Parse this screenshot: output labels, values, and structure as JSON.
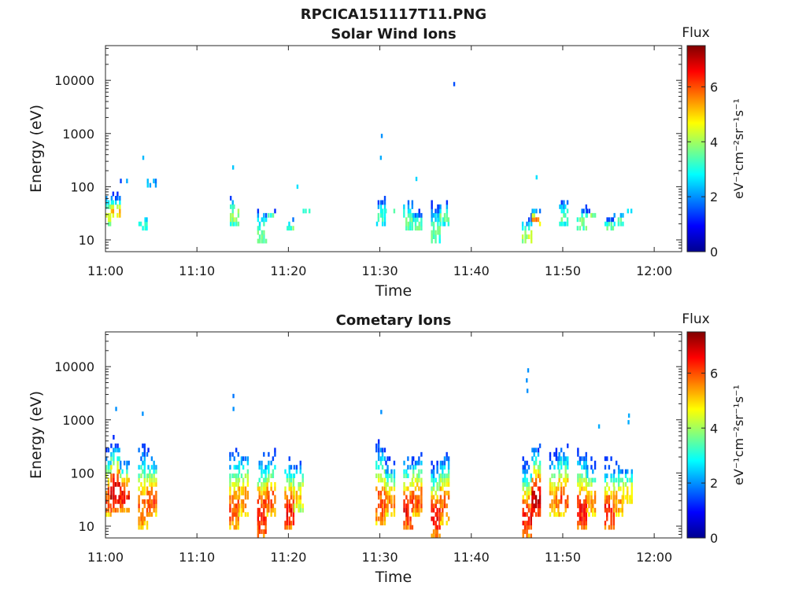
{
  "figure": {
    "title": "RPCICA151117T11.PNG"
  },
  "colorscale": {
    "stops": [
      "#00008f",
      "#0000ff",
      "#0080ff",
      "#00ffff",
      "#80ff80",
      "#ffff00",
      "#ff8000",
      "#ff0000",
      "#800000"
    ],
    "min": 0,
    "max": 7.5
  },
  "chart_data": [
    {
      "type": "heatmap",
      "title": "Solar Wind Ions",
      "xlabel": "Time",
      "ylabel": "Energy (eV)",
      "yscale": "log",
      "xlim": [
        "11:00",
        "12:03"
      ],
      "ylim": [
        6,
        45000
      ],
      "x_ticks": [
        "11:00",
        "11:10",
        "11:20",
        "11:30",
        "11:40",
        "11:50",
        "12:00"
      ],
      "y_ticks": [
        "10",
        "100",
        "1000",
        "10000"
      ],
      "colorbar": {
        "title": "Flux",
        "label": "eV⁻¹cm⁻²sr⁻¹s⁻¹",
        "ticks": [
          "0",
          "2",
          "4",
          "6"
        ]
      },
      "bursts": [
        {
          "t": "11:00",
          "e_lo": 20,
          "e_hi": 100,
          "peak": 4.6
        },
        {
          "t": "11:01",
          "e_lo": 25,
          "e_hi": 90,
          "peak": 5.0
        },
        {
          "t": "11:02",
          "e_lo": 110,
          "e_hi": 150,
          "peak": 2.5
        },
        {
          "t": "11:04",
          "e_lo": 15,
          "e_hi": 40,
          "peak": 3.3
        },
        {
          "t": "11:05",
          "e_lo": 100,
          "e_hi": 180,
          "peak": 2.6
        },
        {
          "t": "11:14",
          "e_lo": 20,
          "e_hi": 100,
          "peak": 4.0
        },
        {
          "t": "11:17",
          "e_lo": 8,
          "e_hi": 70,
          "peak": 3.6
        },
        {
          "t": "11:18",
          "e_lo": 25,
          "e_hi": 40,
          "peak": 3.5
        },
        {
          "t": "11:20",
          "e_lo": 15,
          "e_hi": 30,
          "peak": 3.6
        },
        {
          "t": "11:22",
          "e_lo": 35,
          "e_hi": 40,
          "peak": 3.5
        },
        {
          "t": "11:30",
          "e_lo": 20,
          "e_hi": 100,
          "peak": 3.2
        },
        {
          "t": "11:31",
          "e_lo": 30,
          "e_hi": 45,
          "peak": 3.4
        },
        {
          "t": "11:33",
          "e_lo": 15,
          "e_hi": 100,
          "peak": 3.6
        },
        {
          "t": "11:34",
          "e_lo": 15,
          "e_hi": 45,
          "peak": 3.6
        },
        {
          "t": "11:36",
          "e_lo": 8,
          "e_hi": 100,
          "peak": 3.5
        },
        {
          "t": "11:37",
          "e_lo": 20,
          "e_hi": 80,
          "peak": 3.5
        },
        {
          "t": "11:46",
          "e_lo": 8,
          "e_hi": 40,
          "peak": 4.2
        },
        {
          "t": "11:47",
          "e_lo": 20,
          "e_hi": 45,
          "peak": 5.8
        },
        {
          "t": "11:50",
          "e_lo": 20,
          "e_hi": 80,
          "peak": 3.5
        },
        {
          "t": "11:52",
          "e_lo": 15,
          "e_hi": 60,
          "peak": 3.8
        },
        {
          "t": "11:53",
          "e_lo": 25,
          "e_hi": 40,
          "peak": 3.8
        },
        {
          "t": "11:55",
          "e_lo": 15,
          "e_hi": 30,
          "peak": 3.8
        },
        {
          "t": "11:56",
          "e_lo": 20,
          "e_hi": 40,
          "peak": 3.6
        },
        {
          "t": "11:57",
          "e_lo": 30,
          "e_hi": 40,
          "peak": 3.5
        }
      ],
      "points": [
        {
          "t": "11:04",
          "e": 350,
          "v": 2.3
        },
        {
          "t": "11:14",
          "e": 230,
          "v": 2.4
        },
        {
          "t": "11:21",
          "e": 100,
          "v": 2.6
        },
        {
          "t": "11:30",
          "e": 900,
          "v": 2.0
        },
        {
          "t": "11:30",
          "e": 350,
          "v": 2.2
        },
        {
          "t": "11:34",
          "e": 140,
          "v": 2.5
        },
        {
          "t": "11:38",
          "e": 8500,
          "v": 1.5
        },
        {
          "t": "11:47",
          "e": 150,
          "v": 2.6
        }
      ]
    },
    {
      "type": "heatmap",
      "title": "Cometary Ions",
      "xlabel": "Time",
      "ylabel": "Energy (eV)",
      "yscale": "log",
      "xlim": [
        "11:00",
        "12:03"
      ],
      "ylim": [
        6,
        45000
      ],
      "x_ticks": [
        "11:00",
        "11:10",
        "11:20",
        "11:30",
        "11:40",
        "11:50",
        "12:00"
      ],
      "y_ticks": [
        "10",
        "100",
        "1000",
        "10000"
      ],
      "colorbar": {
        "title": "Flux",
        "label": "eV⁻¹cm⁻²sr⁻¹s⁻¹",
        "ticks": [
          "0",
          "2",
          "4",
          "6"
        ]
      },
      "bursts": [
        {
          "t": "11:00",
          "e_lo": 15,
          "e_hi": 600,
          "peak": 6.0
        },
        {
          "t": "11:01",
          "e_lo": 20,
          "e_hi": 700,
          "peak": 7.0
        },
        {
          "t": "11:02",
          "e_lo": 20,
          "e_hi": 300,
          "peak": 6.5
        },
        {
          "t": "11:04",
          "e_lo": 8,
          "e_hi": 700,
          "peak": 5.8
        },
        {
          "t": "11:05",
          "e_lo": 15,
          "e_hi": 400,
          "peak": 6.0
        },
        {
          "t": "11:14",
          "e_lo": 8,
          "e_hi": 500,
          "peak": 6.0
        },
        {
          "t": "11:15",
          "e_lo": 15,
          "e_hi": 500,
          "peak": 5.5
        },
        {
          "t": "11:17",
          "e_lo": 6,
          "e_hi": 450,
          "peak": 6.5
        },
        {
          "t": "11:18",
          "e_lo": 15,
          "e_hi": 400,
          "peak": 6.0
        },
        {
          "t": "11:20",
          "e_lo": 8,
          "e_hi": 350,
          "peak": 6.5
        },
        {
          "t": "11:21",
          "e_lo": 20,
          "e_hi": 300,
          "peak": 5.0
        },
        {
          "t": "11:30",
          "e_lo": 10,
          "e_hi": 800,
          "peak": 6.0
        },
        {
          "t": "11:31",
          "e_lo": 15,
          "e_hi": 300,
          "peak": 5.5
        },
        {
          "t": "11:33",
          "e_lo": 8,
          "e_hi": 400,
          "peak": 6.5
        },
        {
          "t": "11:34",
          "e_lo": 15,
          "e_hi": 400,
          "peak": 6.0
        },
        {
          "t": "11:36",
          "e_lo": 6,
          "e_hi": 300,
          "peak": 6.5
        },
        {
          "t": "11:37",
          "e_lo": 10,
          "e_hi": 500,
          "peak": 5.8
        },
        {
          "t": "11:46",
          "e_lo": 6,
          "e_hi": 300,
          "peak": 6.5
        },
        {
          "t": "11:47",
          "e_lo": 15,
          "e_hi": 600,
          "peak": 7.0
        },
        {
          "t": "11:49",
          "e_lo": 15,
          "e_hi": 400,
          "peak": 5.5
        },
        {
          "t": "11:50",
          "e_lo": 15,
          "e_hi": 600,
          "peak": 6.0
        },
        {
          "t": "11:52",
          "e_lo": 8,
          "e_hi": 500,
          "peak": 6.5
        },
        {
          "t": "11:53",
          "e_lo": 15,
          "e_hi": 300,
          "peak": 5.5
        },
        {
          "t": "11:55",
          "e_lo": 8,
          "e_hi": 300,
          "peak": 6.5
        },
        {
          "t": "11:56",
          "e_lo": 15,
          "e_hi": 250,
          "peak": 5.5
        },
        {
          "t": "11:57",
          "e_lo": 25,
          "e_hi": 200,
          "peak": 5.0
        }
      ],
      "points": [
        {
          "t": "11:01",
          "e": 1600,
          "v": 2.0
        },
        {
          "t": "11:04",
          "e": 1300,
          "v": 2.0
        },
        {
          "t": "11:14",
          "e": 2800,
          "v": 1.8
        },
        {
          "t": "11:14",
          "e": 1600,
          "v": 2.0
        },
        {
          "t": "11:30",
          "e": 1400,
          "v": 2.0
        },
        {
          "t": "11:46",
          "e": 8500,
          "v": 2.0
        },
        {
          "t": "11:46",
          "e": 5500,
          "v": 2.0
        },
        {
          "t": "11:46",
          "e": 3500,
          "v": 2.0
        },
        {
          "t": "11:54",
          "e": 750,
          "v": 2.2
        },
        {
          "t": "11:57",
          "e": 1200,
          "v": 2.2
        },
        {
          "t": "11:57",
          "e": 900,
          "v": 2.2
        }
      ]
    }
  ]
}
